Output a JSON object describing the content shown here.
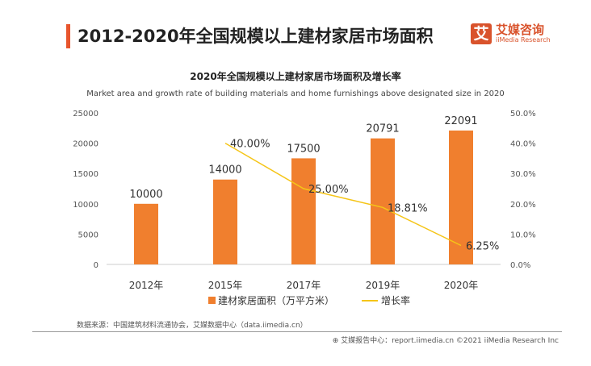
{
  "header": {
    "title": "2012-2020年全国规模以上建材家居市场面积",
    "logo_mark": "艾",
    "logo_cn": "艾媒咨询",
    "logo_en": "iiMedia Research"
  },
  "chart_data": {
    "type": "bar+line",
    "title": "2020年全国规模以上建材家居市场面积及增长率",
    "subtitle": "Market area and growth rate of building materials and home furnishings above designated size in 2020",
    "categories": [
      "2012年",
      "2015年",
      "2017年",
      "2019年",
      "2020年"
    ],
    "series": [
      {
        "name": "建材家居面积（万平方米）",
        "type": "bar",
        "axis": "left",
        "values": [
          10000,
          14000,
          17500,
          20791,
          22091
        ],
        "labels": [
          "10000",
          "14000",
          "17500",
          "20791",
          "22091"
        ],
        "color": "#f07f2e"
      },
      {
        "name": "增长率",
        "type": "line",
        "axis": "right",
        "values": [
          null,
          40.0,
          25.0,
          18.81,
          6.25
        ],
        "labels": [
          "",
          "40.00%",
          "25.00%",
          "18.81%",
          "6.25%"
        ],
        "color": "#f5c518"
      }
    ],
    "y_left": {
      "range": [
        0,
        25000
      ],
      "ticks": [
        "0",
        "5000",
        "10000",
        "15000",
        "20000",
        "25000"
      ]
    },
    "y_right": {
      "range": [
        0,
        50
      ],
      "ticks": [
        "0.0%",
        "10.0%",
        "20.0%",
        "30.0%",
        "40.0%",
        "50.0%"
      ]
    },
    "grid": false,
    "legend": "bottom"
  },
  "footer": {
    "source": "数据来源：中国建筑材料流通协会，艾媒数据中心（data.iimedia.cn）",
    "copyright": "艾媒报告中心：report.iimedia.cn  ©2021  iiMedia Research  Inc"
  }
}
